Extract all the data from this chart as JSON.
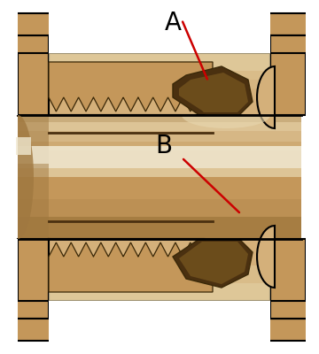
{
  "bg_color": "#ffffff",
  "brass_body": "#c4975a",
  "brass_light": "#d4b07a",
  "brass_lighter": "#dfc898",
  "brass_highlight": "#e8d8b0",
  "brass_white": "#f0e8d0",
  "brass_dark": "#a07840",
  "brass_darker": "#7a5820",
  "brass_very_dark": "#4a3010",
  "brass_medium": "#b88848",
  "thread_dark": "#3a2808",
  "outline_color": "#000000",
  "red_line_color": "#cc0000",
  "label_A": "A",
  "label_B": "B",
  "label_fontsize": 20,
  "anno_lw": 1.8
}
